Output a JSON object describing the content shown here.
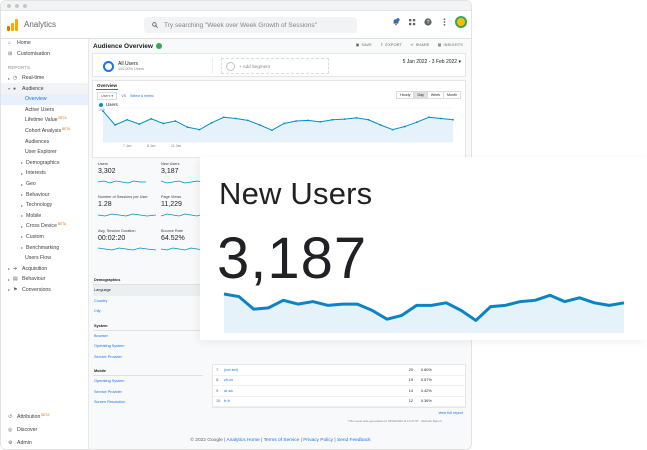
{
  "app": {
    "title": "Analytics",
    "brand_colors": [
      "#f9ab00",
      "#e37400",
      "#e8710a"
    ]
  },
  "search": {
    "placeholder": "Try searching \"Week over Week Growth of Sessions\""
  },
  "topbar": {
    "icons": [
      "notifications-icon",
      "apps-grid-icon",
      "help-icon",
      "more-vert-icon",
      "account-avatar"
    ]
  },
  "sidebar": {
    "home": "Home",
    "customisation": "Customisation",
    "reports_header": "REPORTS",
    "realtime": "Real-time",
    "audience": "Audience",
    "audience_items": {
      "overview": "Overview",
      "active_users": "Active Users",
      "lifetime_value": "Lifetime Value",
      "cohort_analysis": "Cohort Analysis",
      "audiences": "Audiences",
      "user_explorer": "User Explorer",
      "demographics": "Demographics",
      "interests": "Interests",
      "geo": "Geo",
      "behaviour": "Behaviour",
      "technology": "Technology",
      "mobile": "Mobile",
      "cross_device": "Cross Device",
      "custom": "Custom",
      "benchmarking": "Benchmarking",
      "users_flow": "Users Flow"
    },
    "beta_badge": "BETA",
    "acquisition": "Acquisition",
    "behaviour": "Behaviour",
    "conversions": "Conversions",
    "attribution": "Attribution",
    "discover": "Discover",
    "admin": "Admin"
  },
  "report": {
    "title": "Audience Overview",
    "actions": {
      "save": "SAVE",
      "export": "EXPORT",
      "share": "SHARE",
      "insights": "INSIGHTS"
    },
    "segment": {
      "name": "All Users",
      "sub": "100.00% Users",
      "add": "+ Add Segment"
    },
    "date_range": "5 Jan 2022 - 3 Feb 2022",
    "tab": "Overview",
    "metric_select": "Users",
    "vs": "VS",
    "select_metric": "Select a metric",
    "granularity": [
      "Hourly",
      "Day",
      "Week",
      "Month"
    ],
    "granularity_selected": "Day",
    "series_label": "Users"
  },
  "chart_data": {
    "type": "line",
    "series": [
      {
        "name": "Users",
        "values": [
          100,
          55,
          72,
          58,
          75,
          60,
          68,
          48,
          40,
          62,
          80,
          76,
          70,
          55,
          38,
          60,
          68,
          70,
          65,
          72,
          74,
          78,
          72,
          55,
          40,
          50,
          64,
          80,
          76,
          72
        ]
      }
    ],
    "ylim": [
      0,
      110
    ],
    "y_ticks_shown": [
      "200"
    ],
    "x_tick_labels": [
      "7 Jan",
      "8 Jan",
      "11 Jan"
    ],
    "grid": true,
    "color": "#058dc7"
  },
  "metrics": [
    {
      "label": "Users",
      "value": "3,302"
    },
    {
      "label": "New Users",
      "value": "3,187"
    },
    {
      "label": "Number of Sessions per User",
      "value": "1.28"
    },
    {
      "label": "Page Views",
      "value": "11,229"
    },
    {
      "label": "Avg. Session Duration",
      "value": "00:02:20"
    },
    {
      "label": "Bounce Rate",
      "value": "64.52%"
    }
  ],
  "dimensions": {
    "demographics_header": "Demographics",
    "demographics": [
      "Language",
      "Country",
      "City"
    ],
    "system_header": "System",
    "system": [
      "Browser",
      "Operating System",
      "Service Provider"
    ],
    "mobile_header": "Mobile",
    "mobile": [
      "Operating System",
      "Service Provider",
      "Screen Resolution"
    ]
  },
  "table": {
    "rows": [
      {
        "rank": "7.",
        "name": "(not set)",
        "value": "20",
        "pct": "0.60%"
      },
      {
        "rank": "8.",
        "name": "zh-cn",
        "value": "19",
        "pct": "0.57%"
      },
      {
        "rank": "9.",
        "name": "ar-sa",
        "value": "14",
        "pct": "0.42%"
      },
      {
        "rank": "10.",
        "name": "fr-fr",
        "value": "12",
        "pct": "0.36%"
      }
    ],
    "view_full": "view full report"
  },
  "generated_note": "This report was generated on 03/02/2022 at 14:07:07 · Refresh Report",
  "footer": {
    "copyright": "© 2022 Google",
    "links": [
      "Analytics Home",
      "Terms of Service",
      "Privacy Policy",
      "Send Feedback"
    ],
    "sep": " | "
  },
  "overlay": {
    "label": "New Users",
    "value": "3,187",
    "spark_values": [
      62,
      58,
      38,
      40,
      52,
      46,
      50,
      44,
      46,
      46,
      36,
      22,
      28,
      44,
      44,
      48,
      36,
      20,
      42,
      44,
      50,
      52,
      60,
      50,
      56,
      48,
      44,
      48
    ]
  }
}
